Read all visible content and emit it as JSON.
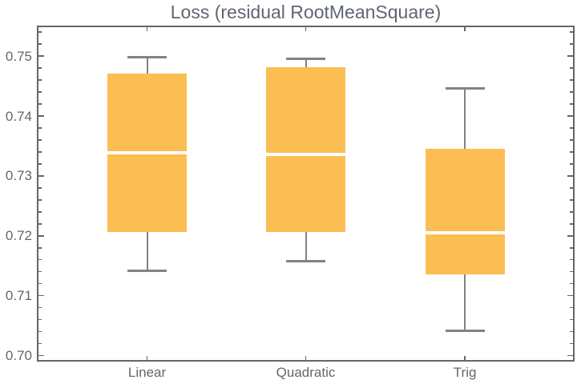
{
  "chart_data": {
    "type": "box-whisker",
    "title": "Loss (residual RootMeanSquare)",
    "categories": [
      "Linear",
      "Quadratic",
      "Trig"
    ],
    "boxes": [
      {
        "category": "Linear",
        "whisker_low": 0.7142,
        "q1": 0.7207,
        "median": 0.7338,
        "q3": 0.7471,
        "whisker_high": 0.7498
      },
      {
        "category": "Quadratic",
        "whisker_low": 0.7157,
        "q1": 0.7207,
        "median": 0.7336,
        "q3": 0.7482,
        "whisker_high": 0.7496
      },
      {
        "category": "Trig",
        "whisker_low": 0.7041,
        "q1": 0.7136,
        "median": 0.7205,
        "q3": 0.7345,
        "whisker_high": 0.7446
      }
    ],
    "ylim": [
      0.699,
      0.7551
    ],
    "yticks": [
      0.7,
      0.71,
      0.72,
      0.73,
      0.74,
      0.75
    ],
    "ytick_labels": [
      "0.70",
      "0.71",
      "0.72",
      "0.73",
      "0.74",
      "0.75"
    ],
    "minor_tick_step": 0.002,
    "grid": false,
    "legend_position": "none",
    "colors": {
      "box_fill": "#FBBE53",
      "median_line": "#FFFFFF",
      "whisker": "#828282",
      "frame": "#666666",
      "tick_label": "#666666",
      "title": "#5F6672"
    }
  }
}
